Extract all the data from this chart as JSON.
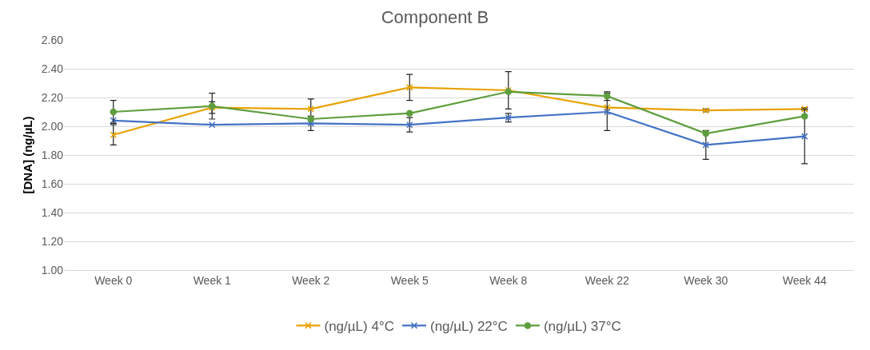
{
  "chart_data": {
    "type": "line",
    "title": "Component B",
    "ylabel": "[DNA] (ng/µL)",
    "categories": [
      "Week 0",
      "Week 1",
      "Week 2",
      "Week 5",
      "Week 8",
      "Week 22",
      "Week 30",
      "Week 44"
    ],
    "series": [
      {
        "name": "(ng/µL) 4°C",
        "color": "#e8a202",
        "marker": "cross",
        "values": [
          1.94,
          2.13,
          2.12,
          2.27,
          2.25,
          2.13,
          2.11,
          2.12
        ],
        "errors": [
          0.07,
          0.04,
          0.07,
          0.09,
          0.13,
          null,
          0.01,
          0.01
        ]
      },
      {
        "name": "(ng/µL) 22°C",
        "color": "#4472c4",
        "marker": "cross",
        "values": [
          2.04,
          2.01,
          2.02,
          2.01,
          2.06,
          2.1,
          1.87,
          1.93
        ],
        "errors": [
          null,
          null,
          0.05,
          0.05,
          0.03,
          0.13,
          0.1,
          0.19
        ]
      },
      {
        "name": "(ng/µL) 37°C",
        "color": "#5f9e3e",
        "marker": "circle",
        "values": [
          2.1,
          2.14,
          2.05,
          2.09,
          2.24,
          2.21,
          1.95,
          2.07
        ],
        "errors": [
          0.08,
          0.09,
          null,
          null,
          null,
          0.03,
          null,
          null
        ]
      }
    ],
    "ylim": [
      1.0,
      2.6
    ],
    "yticks": [
      {
        "value": 1.0,
        "label": "1.00"
      },
      {
        "value": 1.2,
        "label": "1.20"
      },
      {
        "value": 1.4,
        "label": "1.40"
      },
      {
        "value": 1.6,
        "label": "1.60"
      },
      {
        "value": 1.8,
        "label": "1.80"
      },
      {
        "value": 2.0,
        "label": "2.00"
      },
      {
        "value": 2.2,
        "label": "2.20"
      },
      {
        "value": 2.4,
        "label": "2.40"
      },
      {
        "value": 2.6,
        "label": "2.60"
      }
    ],
    "grid": "y",
    "legend": "bottom",
    "line_style": "solid"
  }
}
